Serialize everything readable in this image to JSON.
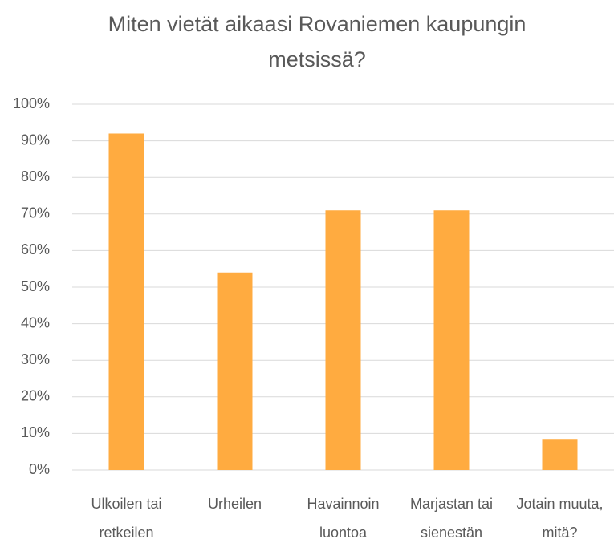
{
  "chart_data": {
    "type": "bar",
    "title": "Miten vietät aikaasi Rovaniemen kaupungin metsissä?",
    "categories": [
      "Ulkoilen tai retkeilen",
      "Urheilen",
      "Havainnoin luontoa",
      "Marjastan tai sienestän",
      "Jotain muuta, mitä?"
    ],
    "values": [
      92,
      54,
      71,
      71,
      8.5
    ],
    "color": "#ffab40",
    "ylim": [
      0,
      100
    ],
    "yticks": [
      {
        "value": 0,
        "label": "0%"
      },
      {
        "value": 10,
        "label": "10%"
      },
      {
        "value": 20,
        "label": "20%"
      },
      {
        "value": 30,
        "label": "30%"
      },
      {
        "value": 40,
        "label": "40%"
      },
      {
        "value": 50,
        "label": "50%"
      },
      {
        "value": 60,
        "label": "60%"
      },
      {
        "value": 70,
        "label": "70%"
      },
      {
        "value": 80,
        "label": "80%"
      },
      {
        "value": 90,
        "label": "90%"
      },
      {
        "value": 100,
        "label": "100%"
      }
    ],
    "grid": true
  }
}
